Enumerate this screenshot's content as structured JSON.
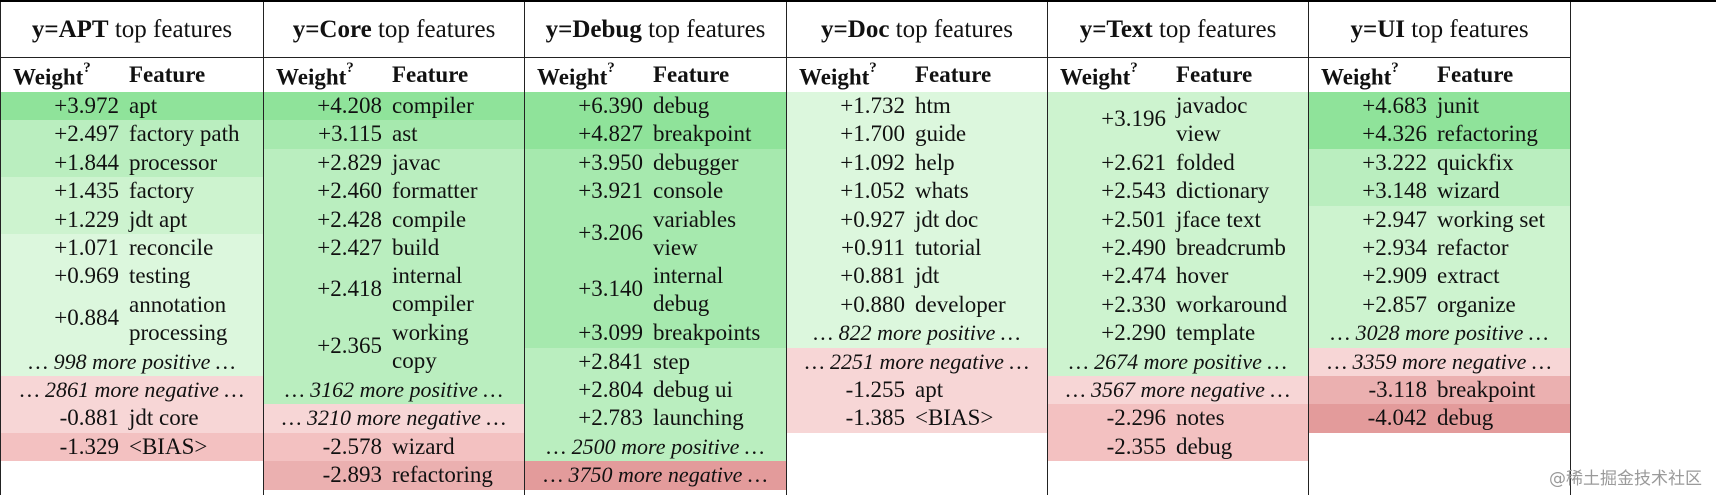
{
  "columns": [
    {
      "label": "y=APT",
      "suffix": " top features",
      "weight_header": "Weight",
      "weight_sup": "?",
      "feature_header": "Feature",
      "rows": [
        {
          "w": "+3.972",
          "f": "apt",
          "c": "g1"
        },
        {
          "w": "+2.497",
          "f": "factory path",
          "c": "g3"
        },
        {
          "w": "+1.844",
          "f": "processor",
          "c": "g3"
        },
        {
          "w": "+1.435",
          "f": "factory",
          "c": "g4"
        },
        {
          "w": "+1.229",
          "f": "jdt apt",
          "c": "g4"
        },
        {
          "w": "+1.071",
          "f": "reconcile",
          "c": "g5"
        },
        {
          "w": "+0.969",
          "f": "testing",
          "c": "g5"
        },
        {
          "w": "+0.884",
          "f": "annotation\nprocessing",
          "c": "g5",
          "tall": true
        }
      ],
      "pos_summary": "… 998 more positive …",
      "neg_summary": "… 2861 more negative …",
      "neg_rows": [
        {
          "w": "-0.881",
          "f": "jdt core",
          "c": "r1"
        },
        {
          "w": "-1.329",
          "f": "<BIAS>",
          "c": "r2"
        }
      ]
    },
    {
      "label": "y=Core",
      "suffix": " top features",
      "weight_header": "Weight",
      "weight_sup": "?",
      "feature_header": "Feature",
      "rows": [
        {
          "w": "+4.208",
          "f": "compiler",
          "c": "g1"
        },
        {
          "w": "+3.115",
          "f": "ast",
          "c": "g2"
        },
        {
          "w": "+2.829",
          "f": "javac",
          "c": "g3"
        },
        {
          "w": "+2.460",
          "f": "formatter",
          "c": "g3"
        },
        {
          "w": "+2.428",
          "f": "compile",
          "c": "g3"
        },
        {
          "w": "+2.427",
          "f": "build",
          "c": "g3"
        },
        {
          "w": "+2.418",
          "f": "internal\ncompiler",
          "c": "g3",
          "tall": true
        },
        {
          "w": "+2.365",
          "f": "working\ncopy",
          "c": "g3",
          "tall": true
        }
      ],
      "pos_summary": "… 3162 more positive …",
      "neg_summary": "… 3210 more negative …",
      "neg_rows": [
        {
          "w": "-2.578",
          "f": "wizard",
          "c": "r2"
        },
        {
          "w": "-2.893",
          "f": "refactoring",
          "c": "r3"
        }
      ]
    },
    {
      "label": "y=Debug",
      "suffix": " top features",
      "weight_header": "Weight",
      "weight_sup": "?",
      "feature_header": "Feature",
      "rows": [
        {
          "w": "+6.390",
          "f": "debug",
          "c": "g1"
        },
        {
          "w": "+4.827",
          "f": "breakpoint",
          "c": "g1"
        },
        {
          "w": "+3.950",
          "f": "debugger",
          "c": "g2"
        },
        {
          "w": "+3.921",
          "f": "console",
          "c": "g2"
        },
        {
          "w": "+3.206",
          "f": "variables\nview",
          "c": "g2",
          "tall": true
        },
        {
          "w": "+3.140",
          "f": "internal\ndebug",
          "c": "g2",
          "tall": true
        },
        {
          "w": "+3.099",
          "f": "breakpoints",
          "c": "g2"
        },
        {
          "w": "+2.841",
          "f": "step",
          "c": "g3"
        },
        {
          "w": "+2.804",
          "f": "debug ui",
          "c": "g3"
        },
        {
          "w": "+2.783",
          "f": "launching",
          "c": "g3"
        }
      ],
      "pos_summary": "… 2500 more positive …",
      "neg_summary": "… 3750 more negative …",
      "neg_rows": []
    },
    {
      "label": "y=Doc",
      "suffix": " top features",
      "weight_header": "Weight",
      "weight_sup": "?",
      "feature_header": "Feature",
      "rows": [
        {
          "w": "+1.732",
          "f": "htm",
          "c": "g5"
        },
        {
          "w": "+1.700",
          "f": "guide",
          "c": "g5"
        },
        {
          "w": "+1.092",
          "f": "help",
          "c": "g5"
        },
        {
          "w": "+1.052",
          "f": "whats",
          "c": "g5"
        },
        {
          "w": "+0.927",
          "f": "jdt doc",
          "c": "g5"
        },
        {
          "w": "+0.911",
          "f": "tutorial",
          "c": "g5"
        },
        {
          "w": "+0.881",
          "f": "jdt",
          "c": "g5"
        },
        {
          "w": "+0.880",
          "f": "developer",
          "c": "g5"
        }
      ],
      "pos_summary": "… 822 more positive …",
      "neg_summary": "… 2251 more negative …",
      "neg_rows": [
        {
          "w": "-1.255",
          "f": "apt",
          "c": "r1"
        },
        {
          "w": "-1.385",
          "f": "<BIAS>",
          "c": "r1"
        }
      ]
    },
    {
      "label": "y=Text",
      "suffix": " top features",
      "weight_header": "Weight",
      "weight_sup": "?",
      "feature_header": "Feature",
      "rows": [
        {
          "w": "+3.196",
          "f": "javadoc\nview",
          "c": "g4",
          "tall": true
        },
        {
          "w": "+2.621",
          "f": "folded",
          "c": "g4"
        },
        {
          "w": "+2.543",
          "f": "dictionary",
          "c": "g4"
        },
        {
          "w": "+2.501",
          "f": "jface text",
          "c": "g4"
        },
        {
          "w": "+2.490",
          "f": "breadcrumb",
          "c": "g4"
        },
        {
          "w": "+2.474",
          "f": "hover",
          "c": "g4"
        },
        {
          "w": "+2.330",
          "f": "workaround",
          "c": "g4"
        },
        {
          "w": "+2.290",
          "f": "template",
          "c": "g4"
        }
      ],
      "pos_summary": "… 2674 more positive …",
      "neg_summary": "… 3567 more negative …",
      "neg_rows": [
        {
          "w": "-2.296",
          "f": "notes",
          "c": "r2"
        },
        {
          "w": "-2.355",
          "f": "debug",
          "c": "r2"
        }
      ]
    },
    {
      "label": "y=UI",
      "suffix": " top features",
      "weight_header": "Weight",
      "weight_sup": "?",
      "feature_header": "Feature",
      "rows": [
        {
          "w": "+4.683",
          "f": "junit",
          "c": "g1"
        },
        {
          "w": "+4.326",
          "f": "refactoring",
          "c": "g1"
        },
        {
          "w": "+3.222",
          "f": "quickfix",
          "c": "g3"
        },
        {
          "w": "+3.148",
          "f": "wizard",
          "c": "g3"
        },
        {
          "w": "+2.947",
          "f": "working set",
          "c": "g4"
        },
        {
          "w": "+2.934",
          "f": "refactor",
          "c": "g4"
        },
        {
          "w": "+2.909",
          "f": "extract",
          "c": "g4"
        },
        {
          "w": "+2.857",
          "f": "organize",
          "c": "g4"
        }
      ],
      "pos_summary": "… 3028 more positive …",
      "neg_summary": "… 3359 more negative …",
      "neg_rows": [
        {
          "w": "-3.118",
          "f": "breakpoint",
          "c": "r3"
        },
        {
          "w": "-4.042",
          "f": "debug",
          "c": "r4"
        }
      ]
    }
  ],
  "watermark": "@稀土掘金技术社区"
}
